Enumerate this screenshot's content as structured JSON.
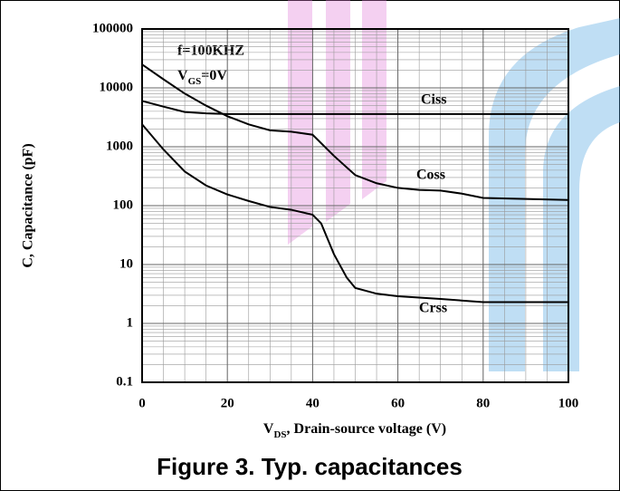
{
  "chart_data": {
    "type": "line",
    "log_y": true,
    "grid": true,
    "color": "#000000",
    "caption": "Figure 3. Typ. capacitances",
    "x_label": [
      "V",
      "DS",
      ", Drain-source voltage (V)"
    ],
    "y_label": "C, Capacitance (pF)",
    "annotations": [
      "f=100KHZ",
      [
        "V",
        "GS",
        "=0V"
      ]
    ],
    "xlim": [
      0,
      100
    ],
    "xticks": [
      0,
      20,
      40,
      60,
      80,
      100
    ],
    "ylim": [
      0.1,
      100000
    ],
    "yticks": [
      100000,
      10000,
      1000,
      100,
      10,
      1,
      0.1
    ],
    "series": [
      {
        "name": "Ciss",
        "color": "#000000",
        "x": [
          0,
          5,
          10,
          15,
          20,
          30,
          40,
          50,
          60,
          70,
          80,
          90,
          100
        ],
        "values": [
          6000,
          4800,
          3900,
          3700,
          3600,
          3600,
          3600,
          3600,
          3600,
          3600,
          3600,
          3600,
          3600
        ]
      },
      {
        "name": "Coss",
        "color": "#000000",
        "x": [
          0,
          5,
          10,
          15,
          20,
          25,
          30,
          35,
          40,
          45,
          50,
          55,
          60,
          65,
          70,
          75,
          80,
          90,
          100
        ],
        "values": [
          25000,
          14000,
          8000,
          5000,
          3300,
          2400,
          1900,
          1800,
          1600,
          700,
          330,
          240,
          200,
          185,
          180,
          160,
          135,
          130,
          125
        ]
      },
      {
        "name": "Crss",
        "color": "#000000",
        "x": [
          0,
          5,
          10,
          15,
          20,
          25,
          30,
          35,
          40,
          42,
          45,
          48,
          50,
          55,
          60,
          70,
          80,
          90,
          100
        ],
        "values": [
          2400,
          900,
          380,
          220,
          155,
          120,
          95,
          85,
          70,
          50,
          15,
          6,
          4,
          3.2,
          2.9,
          2.6,
          2.3,
          2.3,
          2.3
        ]
      }
    ]
  }
}
